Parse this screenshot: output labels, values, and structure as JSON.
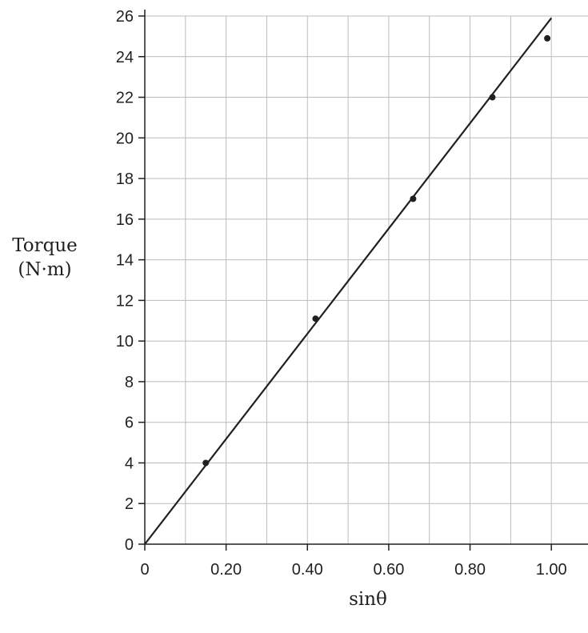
{
  "chart_data": {
    "type": "scatter",
    "xlabel": "sinθ",
    "ylabel_lines": [
      "Torque",
      "(N·m)"
    ],
    "xlim": [
      0,
      1.1
    ],
    "ylim": [
      0,
      26
    ],
    "x_ticks": [
      0,
      0.2,
      0.4,
      0.6,
      0.8,
      1.0
    ],
    "x_tick_labels": [
      "0",
      "0.20",
      "0.40",
      "0.60",
      "0.80",
      "1.00"
    ],
    "y_ticks": [
      0,
      2,
      4,
      6,
      8,
      10,
      12,
      14,
      16,
      18,
      20,
      22,
      24,
      26
    ],
    "y_tick_labels": [
      "0",
      "2",
      "4",
      "6",
      "8",
      "10",
      "12",
      "14",
      "16",
      "18",
      "20",
      "22",
      "24",
      "26"
    ],
    "x_grid_step": 0.1,
    "y_grid_step": 2,
    "grid": true,
    "points": [
      {
        "x": 0.15,
        "y": 4.0
      },
      {
        "x": 0.42,
        "y": 11.1
      },
      {
        "x": 0.66,
        "y": 17.0
      },
      {
        "x": 0.855,
        "y": 22.0
      },
      {
        "x": 0.99,
        "y": 24.9
      }
    ],
    "fit_line": {
      "x": [
        0,
        1.0
      ],
      "y": [
        0,
        25.9
      ]
    },
    "colors": {
      "ink": "#231f20",
      "grid": "#bcbcbc"
    }
  }
}
